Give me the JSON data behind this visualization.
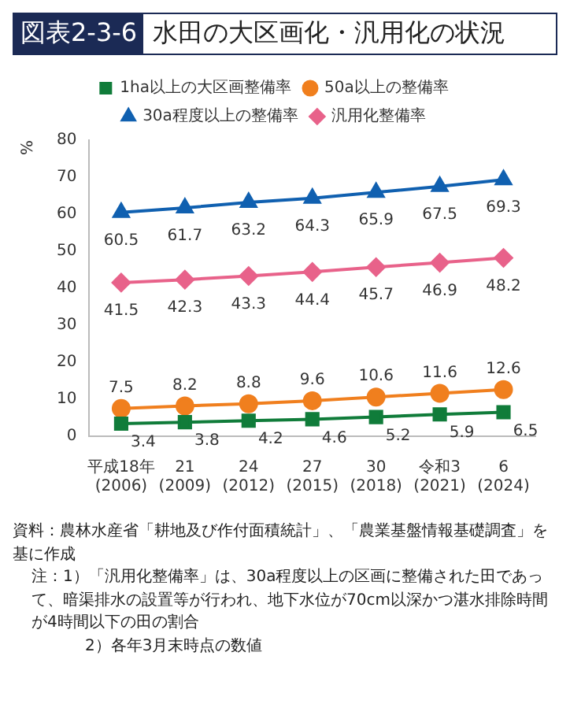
{
  "chart_data": {
    "type": "line",
    "title": "図表2-3-6",
    "subtitle": "水田の大区画化・汎用化の状況",
    "ylabel": "%",
    "categories": [
      "平成18年\n(2006)",
      "21\n(2009)",
      "24\n(2012)",
      "27\n(2015)",
      "30\n(2018)",
      "令和3\n(2021)",
      "6\n(2024)"
    ],
    "series": [
      {
        "name": "1ha以上の大区画整備率",
        "color": "#107c3a",
        "marker": "square",
        "values": [
          3.4,
          3.8,
          4.2,
          4.6,
          5.2,
          5.9,
          6.5
        ]
      },
      {
        "name": "50a以上の整備率",
        "color": "#f07f1e",
        "marker": "circle",
        "values": [
          7.5,
          8.2,
          8.8,
          9.6,
          10.6,
          11.6,
          12.6
        ]
      },
      {
        "name": "30a程度以上の整備率",
        "color": "#1060b0",
        "marker": "triangle",
        "values": [
          60.5,
          61.7,
          63.2,
          64.3,
          65.9,
          67.5,
          69.3
        ]
      },
      {
        "name": "汎用化整備率",
        "color": "#e8628a",
        "marker": "diamond",
        "values": [
          41.5,
          42.3,
          43.3,
          44.4,
          45.7,
          46.9,
          48.2
        ]
      }
    ],
    "ylim": [
      0,
      80
    ],
    "yticks": [
      0,
      10,
      20,
      30,
      40,
      50,
      60,
      70,
      80
    ],
    "grid": false,
    "legend": "top",
    "data_labels": true,
    "annotations": [
      "資料：農林水産省「耕地及び作付面積統計」、「農業基盤情報基礎調査」を基に作成",
      "注：1）「汎用化整備率」は、30a程度以上の区画に整備された田であって、暗渠排水の設置等が行われ、地下水位が70cm以深かつ湛水排除時間が4時間以下の田の割合",
      "2）各年3月末時点の数値"
    ]
  }
}
